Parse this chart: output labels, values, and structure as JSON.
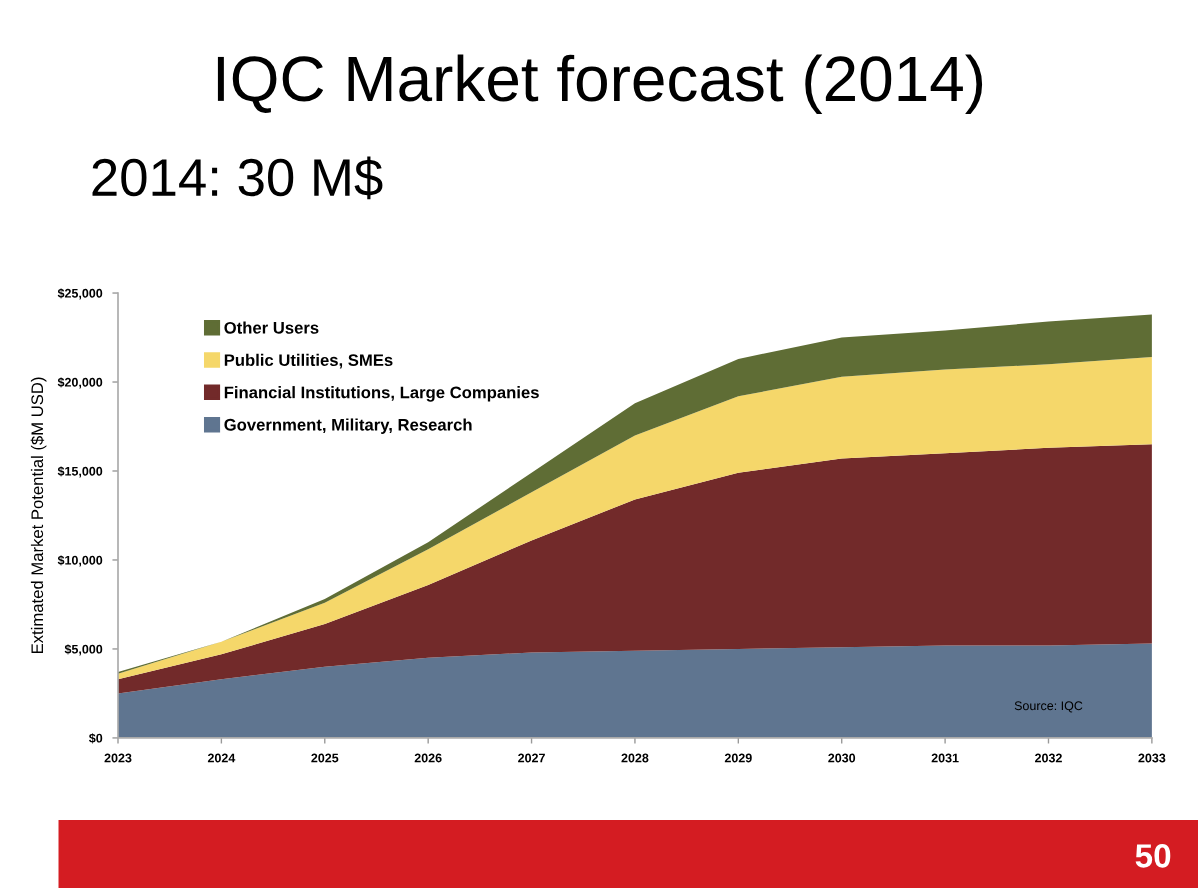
{
  "chart_data": {
    "type": "area",
    "stacked": true,
    "title": "IQC Market forecast (2014)",
    "subtitle": "2014: 30 M$",
    "ylabel": "Extimated Market Potential ($M USD)",
    "x": [
      2023,
      2024,
      2025,
      2026,
      2027,
      2028,
      2029,
      2030,
      2031,
      2032,
      2033
    ],
    "series": [
      {
        "name": "Government, Military, Research",
        "color": "#5f7590",
        "values": [
          2500,
          3300,
          4000,
          4500,
          4800,
          4900,
          5000,
          5100,
          5200,
          5200,
          5300
        ]
      },
      {
        "name": "Financial Institutions, Large Companies",
        "color": "#722a2a",
        "values": [
          800,
          1400,
          2400,
          4100,
          6300,
          8500,
          9900,
          10600,
          10800,
          11100,
          11200
        ]
      },
      {
        "name": "Public Utilities, SMEs",
        "color": "#f5d76a",
        "values": [
          300,
          700,
          1200,
          2000,
          2700,
          3600,
          4300,
          4600,
          4700,
          4700,
          4900
        ]
      },
      {
        "name": "Other Users",
        "color": "#5f6d35",
        "values": [
          100,
          0,
          200,
          400,
          1100,
          1800,
          2100,
          2200,
          2200,
          2400,
          2400
        ]
      }
    ],
    "xlim": [
      2023,
      2033
    ],
    "xticks": [
      2023,
      2024,
      2025,
      2026,
      2027,
      2028,
      2029,
      2030,
      2031,
      2032,
      2033
    ],
    "ylim": [
      0,
      25000
    ],
    "yticks": [
      {
        "value": 0,
        "label": "$0"
      },
      {
        "value": 5000,
        "label": "$5,000"
      },
      {
        "value": 10000,
        "label": "$10,000"
      },
      {
        "value": 15000,
        "label": "$15,000"
      },
      {
        "value": 20000,
        "label": "$20,000"
      },
      {
        "value": 25000,
        "label": "$25,000"
      }
    ],
    "legend": "top left",
    "grid": false,
    "annotations": [
      "Source: IQC",
      "50"
    ]
  }
}
